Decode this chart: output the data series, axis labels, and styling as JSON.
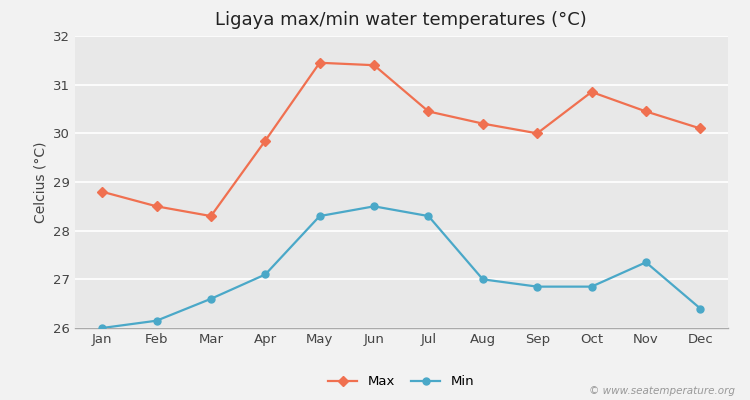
{
  "title": "Ligaya max/min water temperatures (°C)",
  "ylabel": "Celcius (°C)",
  "months": [
    "Jan",
    "Feb",
    "Mar",
    "Apr",
    "May",
    "Jun",
    "Jul",
    "Aug",
    "Sep",
    "Oct",
    "Nov",
    "Dec"
  ],
  "max_values": [
    28.8,
    28.5,
    28.3,
    29.85,
    31.45,
    31.4,
    30.45,
    30.2,
    30.0,
    30.85,
    30.45,
    30.1
  ],
  "min_values": [
    26.0,
    26.15,
    26.6,
    27.1,
    28.3,
    28.5,
    28.3,
    27.0,
    26.85,
    26.85,
    27.35,
    26.4
  ],
  "max_color": "#f07050",
  "min_color": "#4aa8c8",
  "background_color": "#f2f2f2",
  "plot_bg_color": "#e8e8e8",
  "grid_color": "#ffffff",
  "spine_color": "#aaaaaa",
  "ylim_min": 26,
  "ylim_max": 32,
  "yticks": [
    26,
    27,
    28,
    29,
    30,
    31,
    32
  ],
  "watermark": "© www.seatemperature.org",
  "legend_labels": [
    "Max",
    "Min"
  ],
  "title_fontsize": 13,
  "axis_label_fontsize": 10,
  "tick_fontsize": 9.5
}
